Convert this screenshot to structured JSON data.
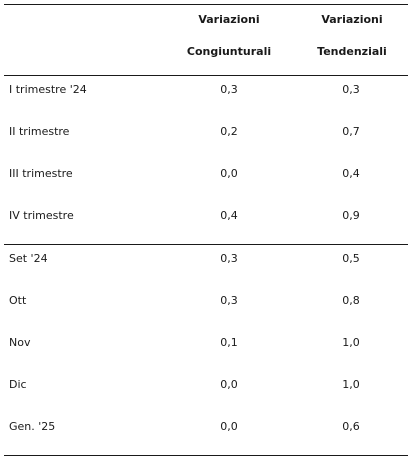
{
  "table": {
    "headers": {
      "congiunturali": [
        "Variazioni",
        "Congiunturali"
      ],
      "tendenziali": [
        "Variazioni",
        "Tendenziali"
      ]
    },
    "rows": [
      {
        "label": "I trimestre '24",
        "congiunturali": "0,3",
        "tendenziali": "0,3"
      },
      {
        "label": "II trimestre",
        "congiunturali": "0,2",
        "tendenziali": "0,7"
      },
      {
        "label": "III trimestre",
        "congiunturali": "0,0",
        "tendenziali": "0,4"
      },
      {
        "label": "IV trimestre",
        "congiunturali": "0,4",
        "tendenziali": "0,9"
      },
      {
        "label": "Set '24",
        "congiunturali": "0,3",
        "tendenziali": "0,5"
      },
      {
        "label": "Ott",
        "congiunturali": "0,3",
        "tendenziali": "0,8"
      },
      {
        "label": "Nov",
        "congiunturali": "0,1",
        "tendenziali": "1,0"
      },
      {
        "label": "Dic",
        "congiunturali": "0,0",
        "tendenziali": "1,0"
      },
      {
        "label": "Gen. '25",
        "congiunturali": "0,0",
        "tendenziali": "0,6"
      }
    ]
  }
}
